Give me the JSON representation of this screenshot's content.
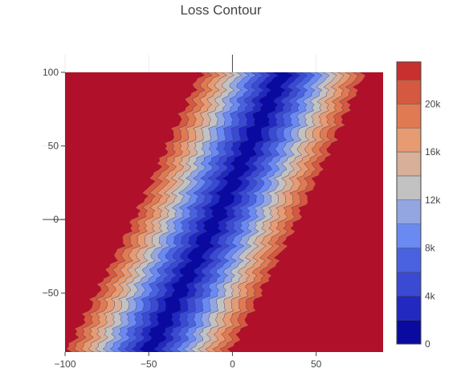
{
  "chart_data": {
    "type": "contour",
    "title": "Loss Contour",
    "xlabel": "",
    "ylabel": "",
    "x_range": [
      -100,
      90
    ],
    "y_range": [
      -90,
      100
    ],
    "x_ticks": [
      -100,
      -50,
      0,
      50
    ],
    "x_tick_labels": [
      "−100",
      "−50",
      "0",
      "50"
    ],
    "y_ticks": [
      100,
      50,
      0,
      -50
    ],
    "y_tick_labels": [
      "100",
      "50",
      "0",
      "−50"
    ],
    "valley": {
      "points": [
        [
          -50,
          -90
        ],
        [
          -10,
          0
        ],
        [
          30,
          100
        ]
      ],
      "min_loss": 0,
      "loss_scale_per_unit_distance": 450
    },
    "contour_levels": [
      0,
      2000,
      4000,
      6000,
      8000,
      10000,
      12000,
      14000,
      16000,
      18000,
      20000,
      22000
    ],
    "colorscale": [
      "#0a0aa0",
      "#2129c0",
      "#3a4ad2",
      "#4a62e0",
      "#6a8af2",
      "#93a6e2",
      "#c2c2c2",
      "#d8b09a",
      "#e69b72",
      "#e07a52",
      "#d45940",
      "#c83030",
      "#b0102a"
    ],
    "colorbar": {
      "range": [
        0,
        23500
      ],
      "ticks": [
        0,
        4000,
        8000,
        12000,
        16000,
        20000
      ],
      "tick_labels": [
        "0",
        "4k",
        "8k",
        "12k",
        "16k",
        "20k"
      ]
    },
    "grid": true,
    "zero_lines": true
  }
}
